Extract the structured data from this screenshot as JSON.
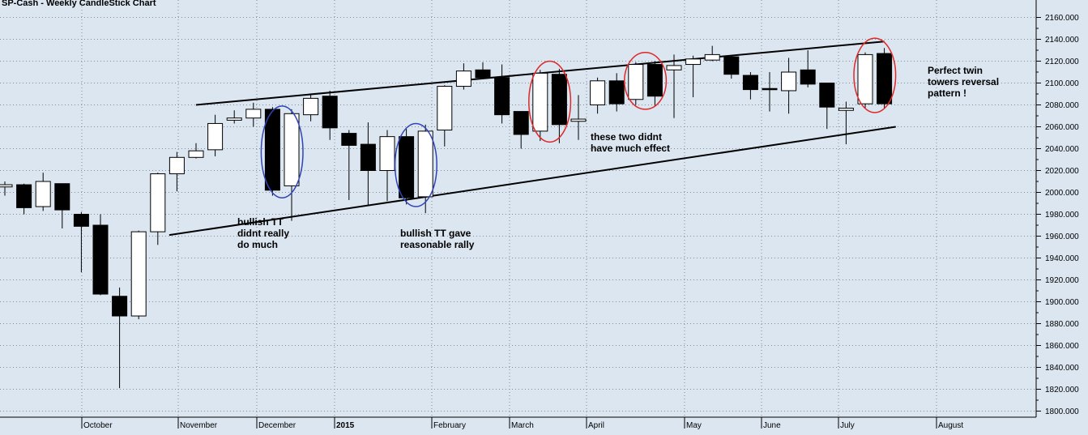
{
  "chart_data": {
    "type": "candlestick",
    "title": "SP-Cash - Weekly CandleStick Chart",
    "ylim": [
      1795,
      2165
    ],
    "yticks": [
      "2160.000",
      "2140.000",
      "2120.000",
      "2100.000",
      "2080.000",
      "2060.000",
      "2040.000",
      "2020.000",
      "2000.000",
      "1980.000",
      "1960.000",
      "1940.000",
      "1920.000",
      "1900.000",
      "1880.000",
      "1860.000",
      "1840.000",
      "1820.000",
      "1800.000"
    ],
    "month_labels": [
      "October",
      "November",
      "December",
      "2015",
      "February",
      "March",
      "April",
      "May",
      "June",
      "July",
      "August"
    ],
    "grid": true,
    "candles": [
      {
        "o": 2005,
        "c": 2007,
        "h": 2010,
        "l": 1997
      },
      {
        "o": 2007,
        "c": 1986,
        "h": 2008,
        "l": 1980
      },
      {
        "o": 1987,
        "c": 2010,
        "h": 2018,
        "l": 1983
      },
      {
        "o": 2008,
        "c": 1984,
        "h": 2008,
        "l": 1967
      },
      {
        "o": 1980,
        "c": 1969,
        "h": 1982,
        "l": 1927
      },
      {
        "o": 1970,
        "c": 1907,
        "h": 1980,
        "l": 1906
      },
      {
        "o": 1905,
        "c": 1887,
        "h": 1913,
        "l": 1821
      },
      {
        "o": 1887,
        "c": 1964,
        "h": 1965,
        "l": 1884
      },
      {
        "o": 1964,
        "c": 2017,
        "h": 2018,
        "l": 1952
      },
      {
        "o": 2017,
        "c": 2032,
        "h": 2037,
        "l": 2001
      },
      {
        "o": 2032,
        "c": 2038,
        "h": 2045,
        "l": 2031
      },
      {
        "o": 2039,
        "c": 2063,
        "h": 2071,
        "l": 2033
      },
      {
        "o": 2066,
        "c": 2068,
        "h": 2075,
        "l": 2063
      },
      {
        "o": 2068,
        "c": 2076,
        "h": 2082,
        "l": 2060
      },
      {
        "o": 2076,
        "c": 2002,
        "h": 2078,
        "l": 1997
      },
      {
        "o": 2006,
        "c": 2072,
        "h": 2076,
        "l": 1974
      },
      {
        "o": 2071,
        "c": 2086,
        "h": 2089,
        "l": 2065
      },
      {
        "o": 2088,
        "c": 2059,
        "h": 2093,
        "l": 2048
      },
      {
        "o": 2054,
        "c": 2043,
        "h": 2057,
        "l": 1993
      },
      {
        "o": 2044,
        "c": 2020,
        "h": 2064,
        "l": 1988
      },
      {
        "o": 2020,
        "c": 2051,
        "h": 2057,
        "l": 1992
      },
      {
        "o": 2051,
        "c": 1995,
        "h": 2058,
        "l": 1989
      },
      {
        "o": 1996,
        "c": 2056,
        "h": 2062,
        "l": 1981
      },
      {
        "o": 2057,
        "c": 2097,
        "h": 2098,
        "l": 2042
      },
      {
        "o": 2097,
        "c": 2111,
        "h": 2118,
        "l": 2094
      },
      {
        "o": 2112,
        "c": 2105,
        "h": 2119,
        "l": 2104
      },
      {
        "o": 2105,
        "c": 2071,
        "h": 2117,
        "l": 2063
      },
      {
        "o": 2074,
        "c": 2053,
        "h": 2074,
        "l": 2040
      },
      {
        "o": 2056,
        "c": 2109,
        "h": 2112,
        "l": 2047
      },
      {
        "o": 2108,
        "c": 2062,
        "h": 2113,
        "l": 2045
      },
      {
        "o": 2065,
        "c": 2067,
        "h": 2089,
        "l": 2048
      },
      {
        "o": 2080,
        "c": 2102,
        "h": 2105,
        "l": 2072
      },
      {
        "o": 2102,
        "c": 2081,
        "h": 2109,
        "l": 2074
      },
      {
        "o": 2085,
        "c": 2117,
        "h": 2119,
        "l": 2080
      },
      {
        "o": 2117,
        "c": 2088,
        "h": 2120,
        "l": 2079
      },
      {
        "o": 2112,
        "c": 2116,
        "h": 2126,
        "l": 2068
      },
      {
        "o": 2117,
        "c": 2122,
        "h": 2125,
        "l": 2087
      },
      {
        "o": 2121,
        "c": 2126,
        "h": 2134,
        "l": 2120
      },
      {
        "o": 2124,
        "c": 2108,
        "h": 2125,
        "l": 2104
      },
      {
        "o": 2107,
        "c": 2094,
        "h": 2110,
        "l": 2085
      },
      {
        "o": 2095,
        "c": 2094,
        "h": 2110,
        "l": 2074
      },
      {
        "o": 2093,
        "c": 2110,
        "h": 2123,
        "l": 2072
      },
      {
        "o": 2112,
        "c": 2099,
        "h": 2130,
        "l": 2096
      },
      {
        "o": 2100,
        "c": 2078,
        "h": 2100,
        "l": 2058
      },
      {
        "o": 2075,
        "c": 2077,
        "h": 2083,
        "l": 2044
      },
      {
        "o": 2081,
        "c": 2126,
        "h": 2128,
        "l": 2077
      },
      {
        "o": 2127,
        "c": 2081,
        "h": 2132,
        "l": 2077
      }
    ],
    "trendlines": [
      {
        "x": [
          8.6,
          46.6
        ],
        "y": [
          1961,
          2060
        ]
      },
      {
        "x": [
          10.0,
          46.0
        ],
        "y": [
          2080,
          2138
        ]
      }
    ],
    "ellipses": [
      {
        "color": "#3044b8",
        "x": [
          14,
          15
        ],
        "y": [
          1995,
          2079
        ]
      },
      {
        "color": "#3044b8",
        "x": [
          21,
          22
        ],
        "y": [
          1987,
          2063
        ]
      },
      {
        "color": "#e02828",
        "x": [
          28,
          29
        ],
        "y": [
          2046,
          2120
        ]
      },
      {
        "color": "#e02828",
        "x": [
          33,
          34
        ],
        "y": [
          2076,
          2128
        ]
      },
      {
        "color": "#e02828",
        "x": [
          45,
          46
        ],
        "y": [
          2073,
          2141
        ]
      }
    ],
    "annotations": [
      {
        "lines": [
          "bullish TT",
          "didnt really",
          "do much"
        ]
      },
      {
        "lines": [
          "bullish TT gave",
          "reasonable rally"
        ]
      },
      {
        "lines": [
          "these two didnt",
          "have much effect"
        ]
      },
      {
        "lines": [
          "Perfect twin",
          "towers reversal",
          "pattern  !"
        ]
      }
    ],
    "colors": {
      "background": "#dbe6f1",
      "grid": "#7f8b96",
      "bear": "#000000",
      "bull": "#ffffff",
      "blue_ellipse": "#3044b8",
      "red_ellipse": "#e02828"
    }
  }
}
